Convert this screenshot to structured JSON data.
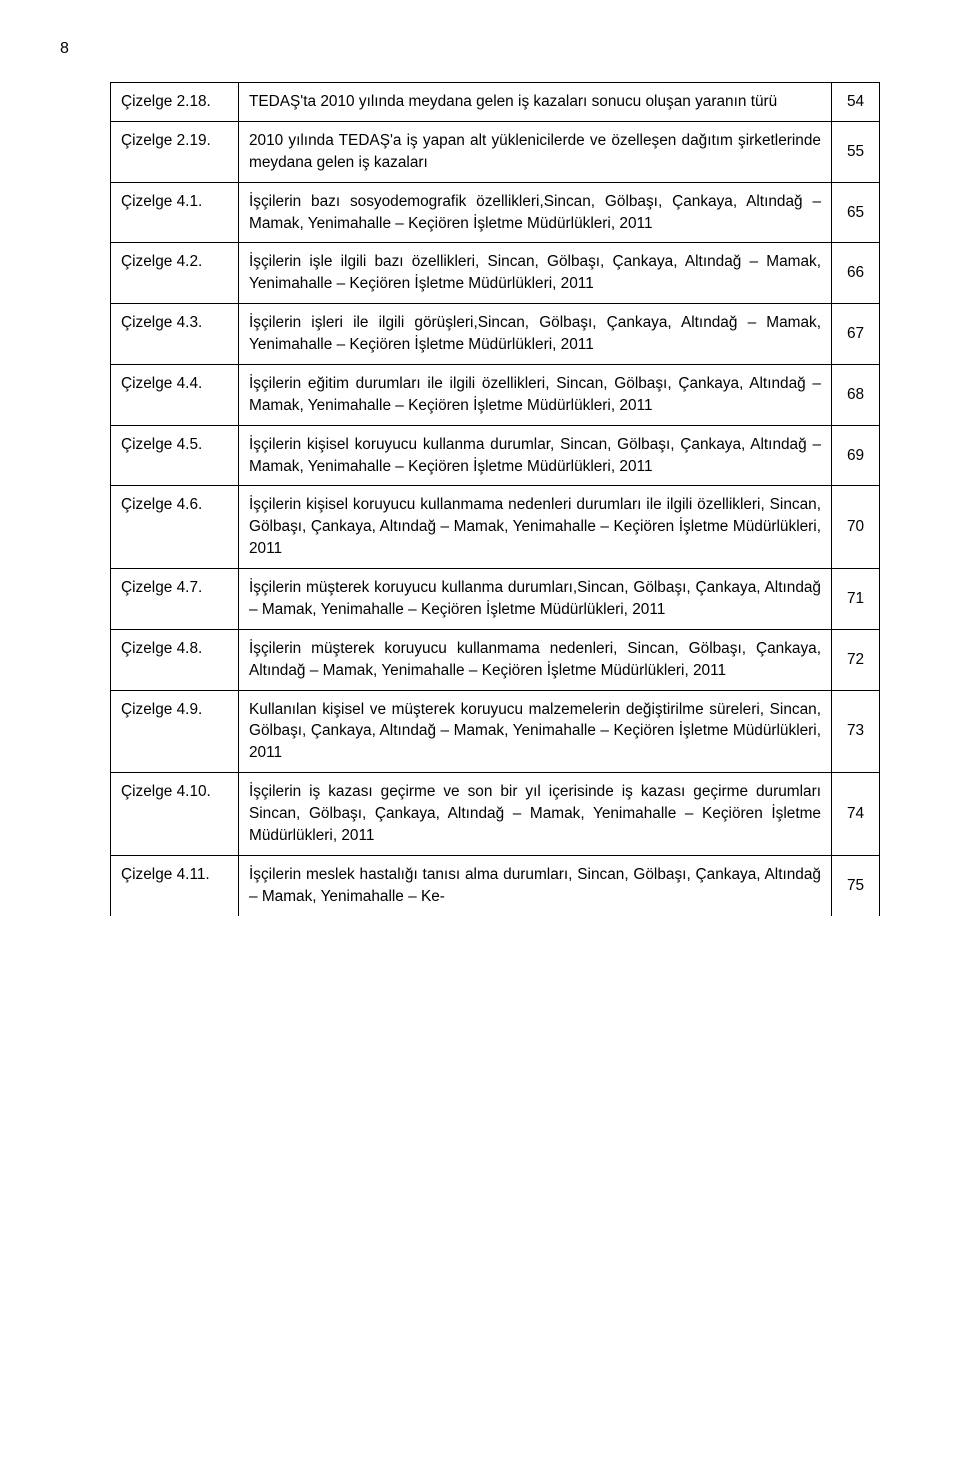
{
  "page_number": "8",
  "table": {
    "rows": [
      {
        "label": "Çizelge 2.18.",
        "desc": "TEDAŞ'ta 2010 yılında meydana gelen iş kazaları sonucu oluşan yaranın türü",
        "num": "54"
      },
      {
        "label": "Çizelge 2.19.",
        "desc": "2010 yılında TEDAŞ'a iş yapan alt yüklenicilerde ve özelleşen dağıtım şirketlerinde meydana gelen iş kazaları",
        "num": "55"
      },
      {
        "label": "Çizelge 4.1.",
        "desc": "İşçilerin bazı sosyodemografik özellikleri,Sincan, Gölbaşı, Çankaya, Altındağ – Mamak, Yenimahalle – Keçiören İşletme Müdürlükleri, 2011",
        "num": "65"
      },
      {
        "label": "Çizelge 4.2.",
        "desc": "İşçilerin işle ilgili bazı özellikleri, Sincan, Gölbaşı, Çankaya, Altındağ – Mamak, Yenimahalle – Keçiören İşletme Müdürlükleri, 2011",
        "num": "66"
      },
      {
        "label": "Çizelge 4.3.",
        "desc": "İşçilerin işleri ile ilgili görüşleri,Sincan, Gölbaşı, Çankaya, Altındağ – Mamak, Yenimahalle – Keçiören İşletme Müdürlükleri, 2011",
        "num": "67"
      },
      {
        "label": "Çizelge 4.4.",
        "desc": "İşçilerin eğitim durumları ile ilgili özellikleri, Sincan, Gölbaşı, Çankaya, Altındağ – Mamak, Yenimahalle – Keçiören İşletme Müdürlükleri, 2011",
        "num": "68"
      },
      {
        "label": "Çizelge 4.5.",
        "desc": "İşçilerin kişisel koruyucu kullanma durumlar, Sincan, Gölbaşı, Çankaya, Altındağ – Mamak, Yenimahalle – Keçiören İşletme Müdürlükleri, 2011",
        "num": "69"
      },
      {
        "label": "Çizelge 4.6.",
        "desc": "İşçilerin kişisel koruyucu kullanmama nedenleri durumları ile ilgili özellikleri, Sincan, Gölbaşı, Çankaya, Altındağ – Mamak, Yenimahalle – Keçiören İşletme Müdürlükleri, 2011",
        "num": "70"
      },
      {
        "label": "Çizelge 4.7.",
        "desc": "İşçilerin müşterek koruyucu kullanma durumları,Sincan, Gölbaşı, Çankaya, Altındağ – Mamak, Yenimahalle – Keçiören İşletme Müdürlükleri, 2011",
        "num": "71"
      },
      {
        "label": "Çizelge 4.8.",
        "desc": "İşçilerin müşterek koruyucu kullanmama nedenleri, Sincan, Gölbaşı, Çankaya, Altındağ – Mamak, Yenimahalle – Keçiören İşletme Müdürlükleri, 2011",
        "num": "72"
      },
      {
        "label": "Çizelge 4.9.",
        "desc": "Kullanılan kişisel ve müşterek koruyucu malzemelerin değiştirilme süreleri, Sincan, Gölbaşı, Çankaya, Altındağ – Mamak, Yenimahalle – Keçiören İşletme Müdürlükleri, 2011",
        "num": "73"
      },
      {
        "label": "Çizelge 4.10.",
        "desc": "İşçilerin iş kazası geçirme ve son bir yıl içerisinde iş kazası geçirme durumları Sincan, Gölbaşı, Çankaya, Altındağ – Mamak, Yenimahalle – Keçiören İşletme Müdürlükleri, 2011",
        "num": "74"
      },
      {
        "label": "Çizelge 4.11.",
        "desc": "İşçilerin meslek hastalığı tanısı alma durumları, Sincan, Gölbaşı, Çankaya, Altındağ – Mamak, Yenimahalle – Ke-",
        "num": "75"
      }
    ]
  }
}
